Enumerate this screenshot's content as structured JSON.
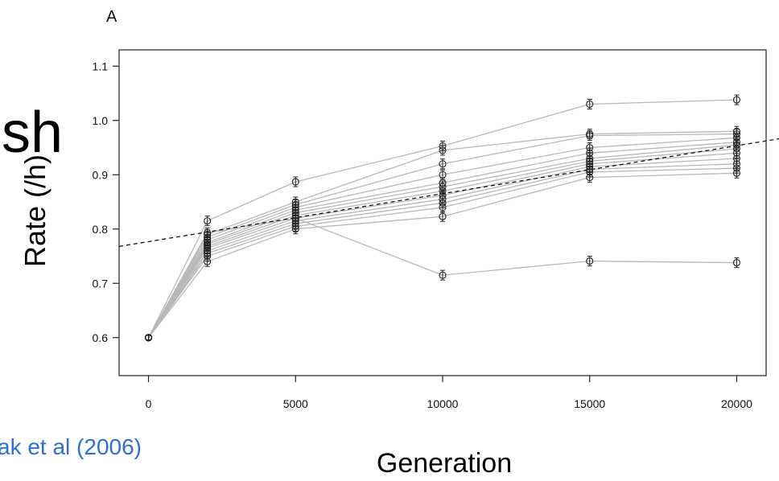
{
  "panel_label": "A",
  "title_fragment": "sh",
  "citation": "ak et al (2006)",
  "colors": {
    "citation": "#2e6fd6",
    "series": "#b8b8b8",
    "marker": "#222222",
    "trend": "#000000"
  },
  "chart_data": {
    "type": "line",
    "xlabel": "Generation",
    "ylabel": "Rate (/h)",
    "x": [
      0,
      2000,
      5000,
      10000,
      15000,
      20000
    ],
    "x_ticks": [
      "0",
      "5000",
      "10000",
      "15000",
      "20000"
    ],
    "x_tick_values": [
      0,
      5000,
      10000,
      15000,
      20000
    ],
    "y_ticks": [
      "0.6",
      "0.7",
      "0.8",
      "0.9",
      "1.0",
      "1.1"
    ],
    "y_tick_values": [
      0.6,
      0.7,
      0.8,
      0.9,
      1.0,
      1.1
    ],
    "xlim": [
      -1000,
      21000
    ],
    "ylim": [
      0.53,
      1.13
    ],
    "grid": false,
    "series": [
      {
        "values": [
          0.6,
          0.815,
          0.887,
          0.953,
          1.03,
          1.038
        ]
      },
      {
        "values": [
          0.6,
          0.79,
          0.85,
          0.945,
          0.975,
          0.98
        ]
      },
      {
        "values": [
          0.6,
          0.785,
          0.845,
          0.92,
          0.972,
          0.975
        ]
      },
      {
        "values": [
          0.6,
          0.78,
          0.84,
          0.9,
          0.95,
          0.968
        ]
      },
      {
        "values": [
          0.6,
          0.775,
          0.835,
          0.885,
          0.94,
          0.96
        ]
      },
      {
        "values": [
          0.6,
          0.772,
          0.83,
          0.878,
          0.93,
          0.955
        ]
      },
      {
        "values": [
          0.6,
          0.768,
          0.825,
          0.87,
          0.925,
          0.948
        ]
      },
      {
        "values": [
          0.6,
          0.765,
          0.82,
          0.862,
          0.92,
          0.94
        ]
      },
      {
        "values": [
          0.6,
          0.76,
          0.815,
          0.855,
          0.915,
          0.93
        ]
      },
      {
        "values": [
          0.6,
          0.755,
          0.81,
          0.848,
          0.91,
          0.92
        ]
      },
      {
        "values": [
          0.6,
          0.75,
          0.805,
          0.84,
          0.905,
          0.912
        ]
      },
      {
        "values": [
          0.6,
          0.74,
          0.8,
          0.823,
          0.895,
          0.903
        ]
      },
      {
        "values": [
          0.6,
          0.793,
          0.82,
          0.715,
          0.741,
          0.738
        ]
      }
    ],
    "trend": {
      "style": "dashed",
      "x": [
        -1000,
        21000
      ],
      "y": [
        0.768,
        0.962
      ]
    }
  }
}
